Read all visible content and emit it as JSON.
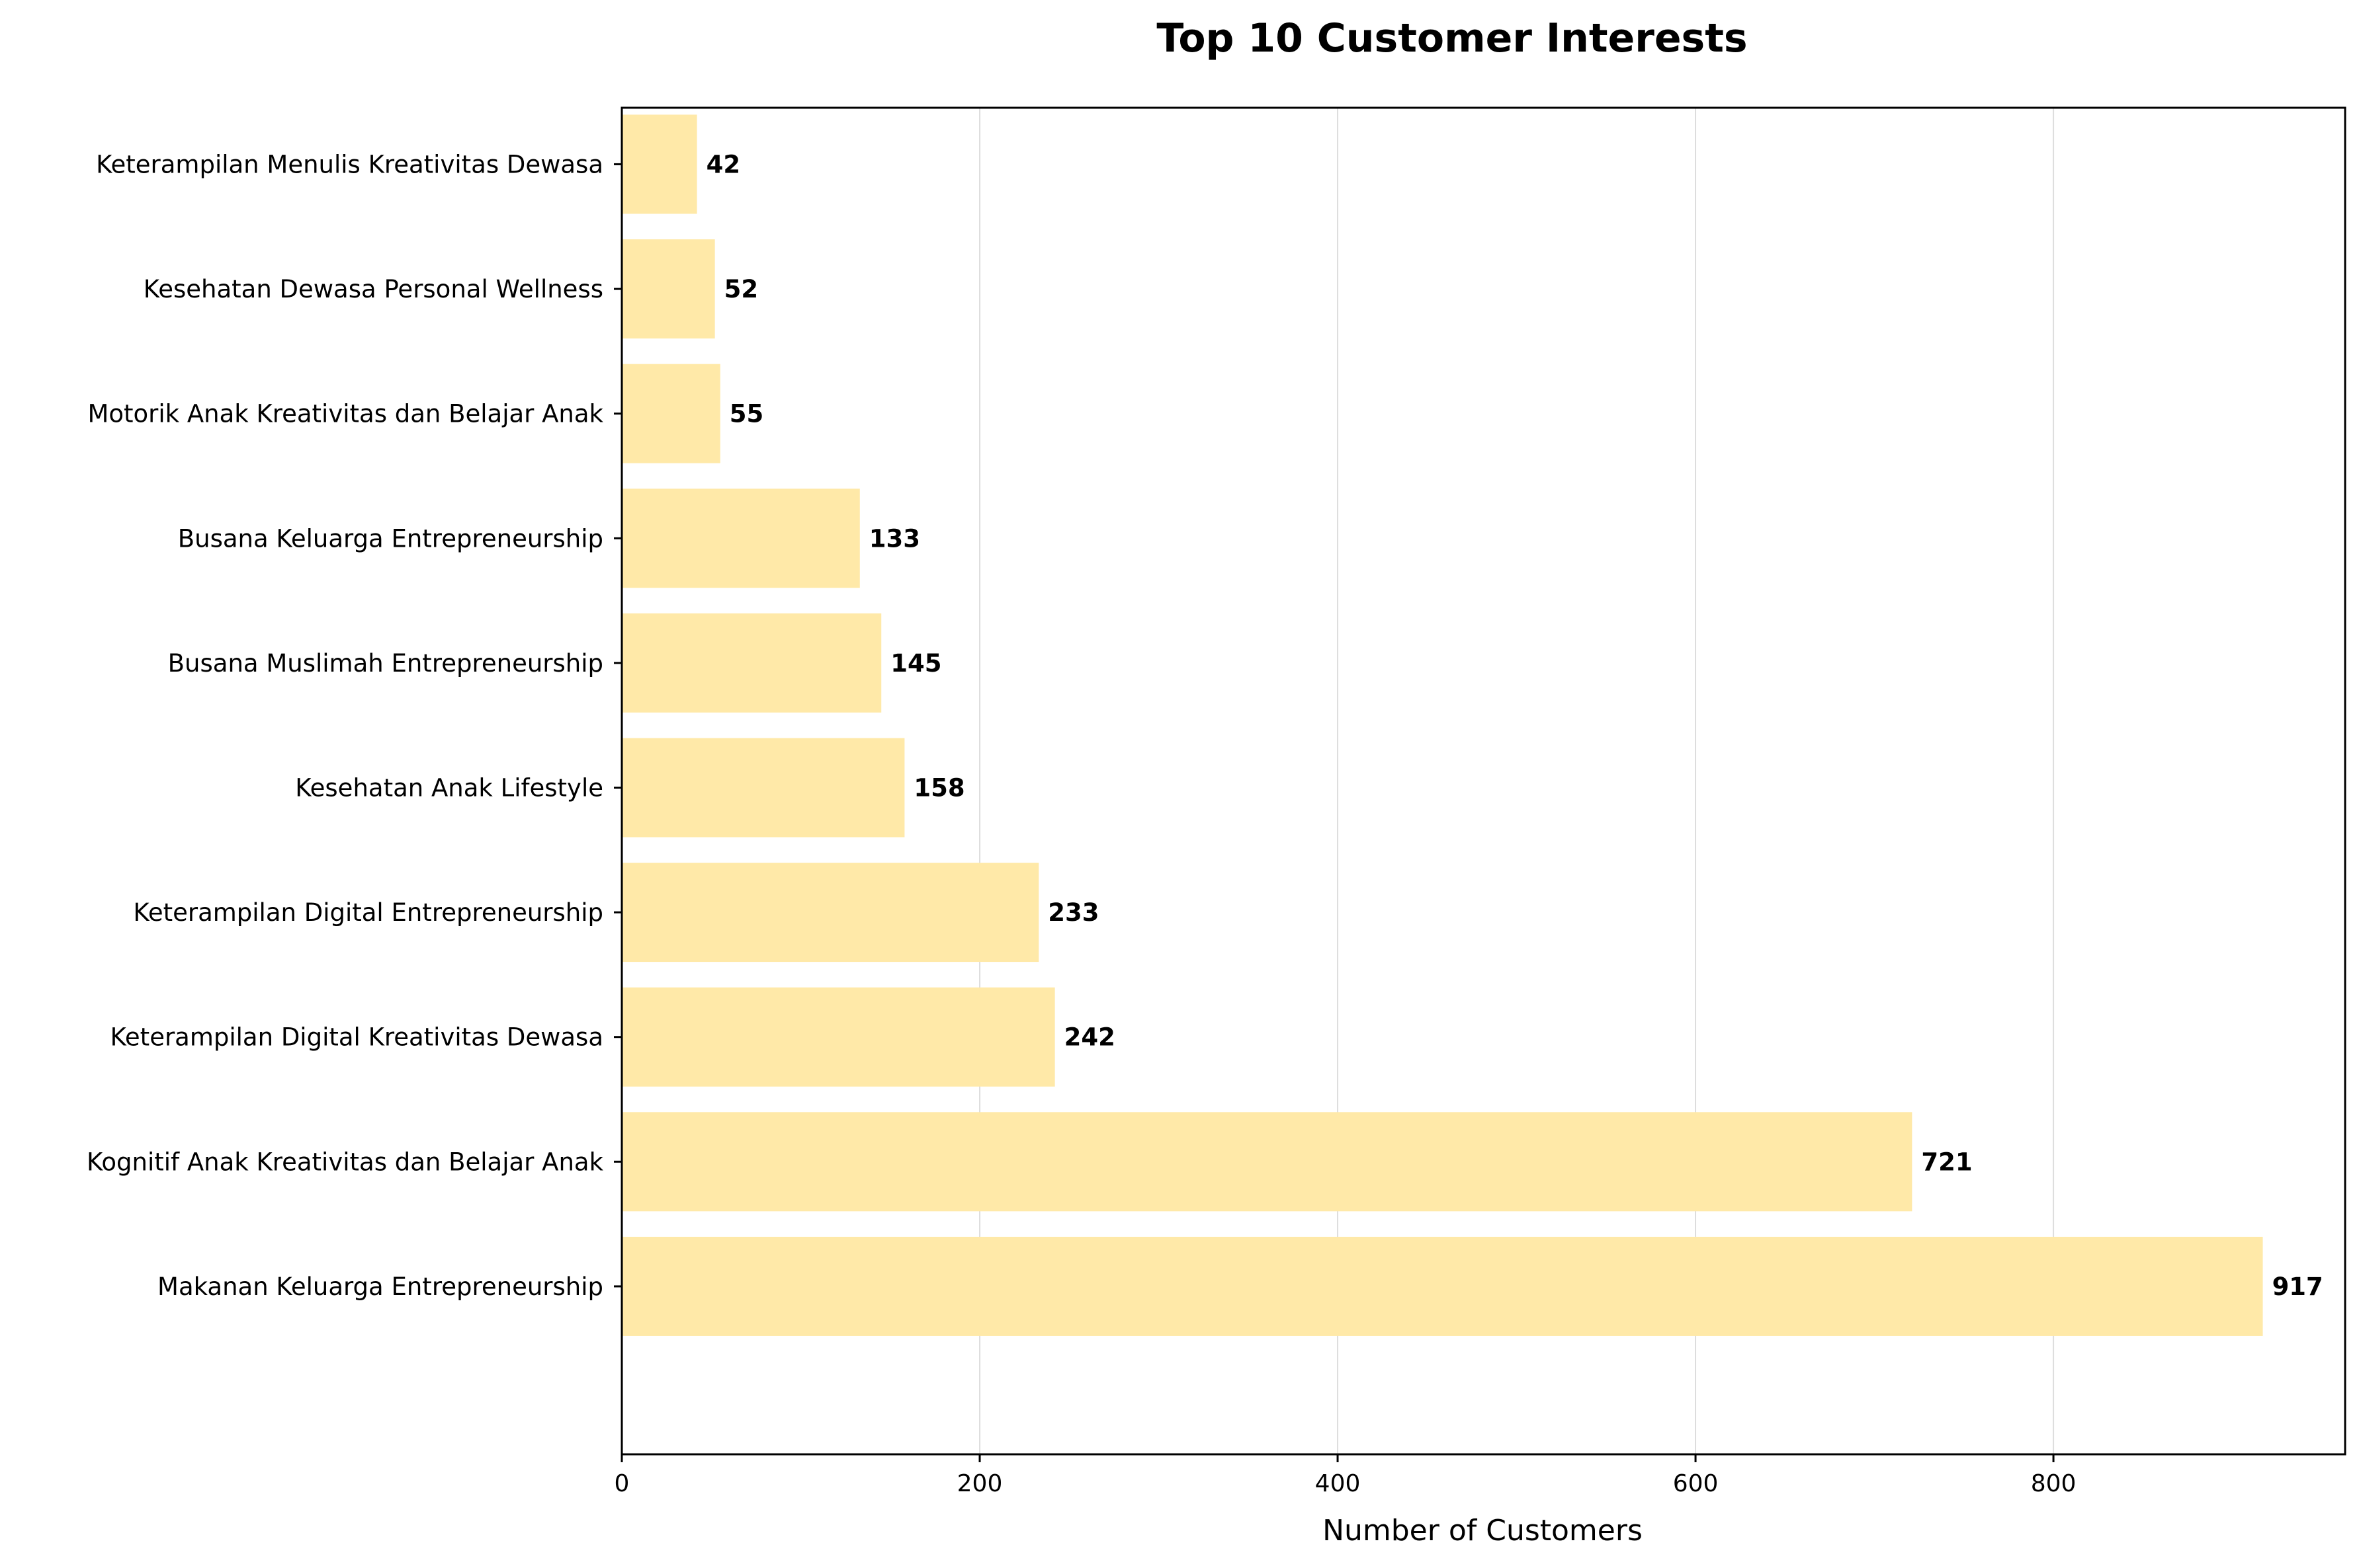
{
  "chart_data": {
    "type": "bar",
    "orientation": "horizontal",
    "title": "Top 10 Customer Interests",
    "xlabel": "Number of Customers",
    "ylabel": "",
    "categories": [
      "Makanan Keluarga Entrepreneurship",
      "Kognitif Anak Kreativitas dan Belajar Anak",
      "Keterampilan Digital Kreativitas Dewasa",
      "Keterampilan Digital Entrepreneurship",
      "Kesehatan Anak Lifestyle",
      "Busana Muslimah Entrepreneurship",
      "Busana Keluarga Entrepreneurship",
      "Motorik Anak Kreativitas dan Belajar Anak",
      "Kesehatan Dewasa Personal Wellness",
      "Keterampilan Menulis Kreativitas Dewasa"
    ],
    "values": [
      917,
      721,
      242,
      233,
      158,
      145,
      133,
      55,
      52,
      42
    ],
    "data_labels": [
      "917",
      "721",
      "242",
      "233",
      "158",
      "145",
      "133",
      "55",
      "52",
      "42"
    ],
    "xticks": [
      "0",
      "200",
      "400",
      "600",
      "800"
    ],
    "xtick_values": [
      0,
      200,
      400,
      600,
      800
    ],
    "xlim": [
      0,
      963
    ],
    "grid": "vertical",
    "legend": "none",
    "colors": {
      "bar": "#ffe9a8",
      "grid": "#dddddd",
      "text": "#000000",
      "axis": "#000000"
    }
  }
}
